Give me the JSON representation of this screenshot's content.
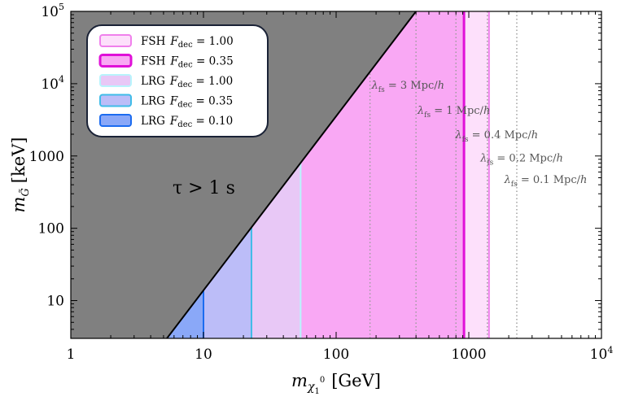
{
  "chart_data": {
    "type": "area",
    "title": "",
    "xlabel": "m",
    "xlabel_sub": "χ",
    "xlabel_sub_sub": "1",
    "xlabel_sup": "0",
    "xlabel_unit": "[GeV]",
    "ylabel": "m",
    "ylabel_sub": "G̃",
    "ylabel_unit": "[keV]",
    "x_scale": "log",
    "y_scale": "log",
    "xlim": [
      1,
      10000
    ],
    "ylim": [
      3,
      100000
    ],
    "x_ticks": [
      {
        "value": 1,
        "label": "1",
        "sup": ""
      },
      {
        "value": 10,
        "label": "10",
        "sup": ""
      },
      {
        "value": 100,
        "label": "100",
        "sup": ""
      },
      {
        "value": 1000,
        "label": "1000",
        "sup": ""
      },
      {
        "value": 10000,
        "label": "10",
        "sup": "4"
      }
    ],
    "y_ticks": [
      {
        "value": 10,
        "label": "10",
        "sup": ""
      },
      {
        "value": 100,
        "label": "100",
        "sup": ""
      },
      {
        "value": 1000,
        "label": "1000",
        "sup": ""
      },
      {
        "value": 10000,
        "label": "10",
        "sup": "4"
      },
      {
        "value": 100000,
        "label": "10",
        "sup": "5"
      }
    ],
    "lifetime_boundary": {
      "points": [
        [
          5.3,
          3
        ],
        [
          400,
          100000
        ]
      ],
      "fill_color": "#808080",
      "label": "τ > 1 s"
    },
    "regions": [
      {
        "name": "FSH",
        "fdec_label": "F",
        "fdec_sub": "dec",
        "fdec": "1.00",
        "x_max": 1420,
        "fill": "#fde0fb",
        "stroke": "#f080ec",
        "stroke_width": 2
      },
      {
        "name": "FSH",
        "fdec_label": "F",
        "fdec_sub": "dec",
        "fdec": "0.35",
        "x_max": 920,
        "fill": "#f9a8f4",
        "stroke": "#e010d8",
        "stroke_width": 3
      },
      {
        "name": "LRG",
        "fdec_label": "F",
        "fdec_sub": "dec",
        "fdec": "1.00",
        "x_max": 54,
        "fill": "#e8c8f6",
        "stroke": "#b8f4fc",
        "stroke_width": 2
      },
      {
        "name": "LRG",
        "fdec_label": "F",
        "fdec_sub": "dec",
        "fdec": "0.35",
        "x_max": 23,
        "fill": "#bcbdf8",
        "stroke": "#40bce8",
        "stroke_width": 2
      },
      {
        "name": "LRG",
        "fdec_label": "F",
        "fdec_sub": "dec",
        "fdec": "0.10",
        "x_max": 10,
        "fill": "#8aa8f8",
        "stroke": "#1c6cf0",
        "stroke_width": 2
      }
    ],
    "freestreaming_lines": [
      {
        "x": 180,
        "prefix": "λ",
        "sub": "fs",
        "text": " = 3 Mpc/",
        "unit": "h",
        "label_x": 185,
        "label_y": 8500
      },
      {
        "x": 400,
        "prefix": "λ",
        "sub": "fs",
        "text": " = 1 Mpc/",
        "unit": "h",
        "label_x": 410,
        "label_y": 3800
      },
      {
        "x": 800,
        "prefix": "λ",
        "sub": "fs",
        "text": " = 0.4 Mpc/",
        "unit": "h",
        "label_x": 790,
        "label_y": 1750
      },
      {
        "x": 1380,
        "prefix": "λ",
        "sub": "fs",
        "text": " = 0.2 Mpc/",
        "unit": "h",
        "label_x": 1220,
        "label_y": 840
      },
      {
        "x": 2300,
        "prefix": "λ",
        "sub": "fs",
        "text": " = 0.1 Mpc/",
        "unit": "h",
        "label_x": 1850,
        "label_y": 420
      }
    ],
    "legend_position": "top-left",
    "grid": false
  }
}
